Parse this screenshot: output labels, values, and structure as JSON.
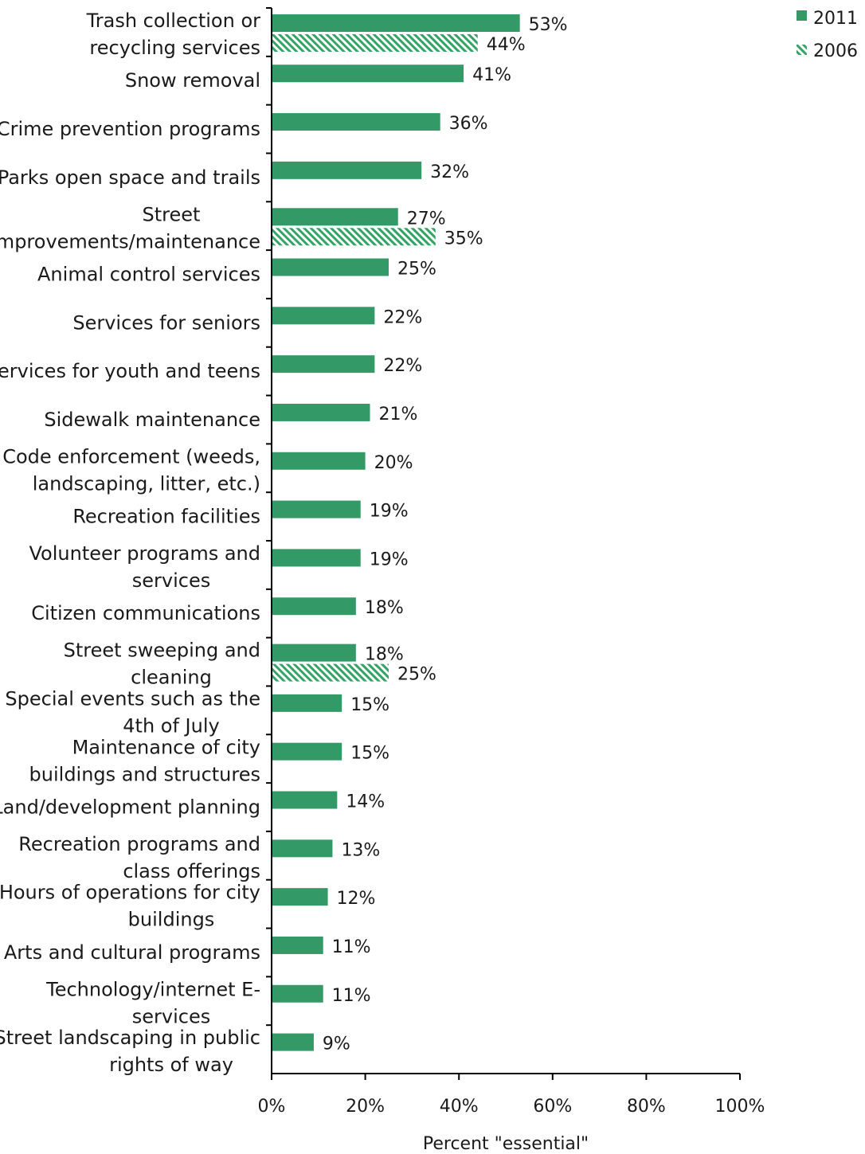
{
  "chart_data": {
    "type": "bar",
    "orientation": "horizontal",
    "xlabel": "Percent \"essential\"",
    "xlim": [
      0,
      100
    ],
    "xticks": [
      "0%",
      "20%",
      "40%",
      "60%",
      "80%",
      "100%"
    ],
    "legend_position": "top-right",
    "colors": {
      "2011": "#339966",
      "2006": "#33a366"
    },
    "series": [
      {
        "name": "2011",
        "style": "solid"
      },
      {
        "name": "2006",
        "style": "hatched"
      }
    ],
    "categories": [
      {
        "label": [
          "Trash collection or",
          "recycling services"
        ],
        "v2011": 53,
        "v2006": 44
      },
      {
        "label": [
          "Snow removal"
        ],
        "v2011": 41,
        "v2006": null
      },
      {
        "label": [
          "Crime prevention programs"
        ],
        "v2011": 36,
        "v2006": null
      },
      {
        "label": [
          "Parks open space and trails"
        ],
        "v2011": 32,
        "v2006": null
      },
      {
        "label": [
          "Street",
          "improvements/maintenance"
        ],
        "v2011": 27,
        "v2006": 35
      },
      {
        "label": [
          "Animal control services"
        ],
        "v2011": 25,
        "v2006": null
      },
      {
        "label": [
          "Services for seniors"
        ],
        "v2011": 22,
        "v2006": null
      },
      {
        "label": [
          "Services for youth and teens"
        ],
        "v2011": 22,
        "v2006": null
      },
      {
        "label": [
          "Sidewalk maintenance"
        ],
        "v2011": 21,
        "v2006": null
      },
      {
        "label": [
          "Code enforcement (weeds,",
          "landscaping, litter, etc.)"
        ],
        "v2011": 20,
        "v2006": null
      },
      {
        "label": [
          "Recreation facilities"
        ],
        "v2011": 19,
        "v2006": null
      },
      {
        "label": [
          "Volunteer programs and",
          "services"
        ],
        "v2011": 19,
        "v2006": null
      },
      {
        "label": [
          "Citizen communications"
        ],
        "v2011": 18,
        "v2006": null
      },
      {
        "label": [
          "Street sweeping and",
          "cleaning"
        ],
        "v2011": 18,
        "v2006": 25
      },
      {
        "label": [
          "Special events such as the",
          "4th of July"
        ],
        "v2011": 15,
        "v2006": null
      },
      {
        "label": [
          "Maintenance of city",
          "buildings and structures"
        ],
        "v2011": 15,
        "v2006": null
      },
      {
        "label": [
          "Land/development planning"
        ],
        "v2011": 14,
        "v2006": null
      },
      {
        "label": [
          "Recreation programs and",
          "class offerings"
        ],
        "v2011": 13,
        "v2006": null
      },
      {
        "label": [
          "Hours of operations for city",
          "buildings"
        ],
        "v2011": 12,
        "v2006": null
      },
      {
        "label": [
          "Arts and cultural programs"
        ],
        "v2011": 11,
        "v2006": null
      },
      {
        "label": [
          "Technology/internet E-",
          "services"
        ],
        "v2011": 11,
        "v2006": null
      },
      {
        "label": [
          "Street landscaping in public",
          "rights of way"
        ],
        "v2011": 9,
        "v2006": null
      }
    ]
  }
}
